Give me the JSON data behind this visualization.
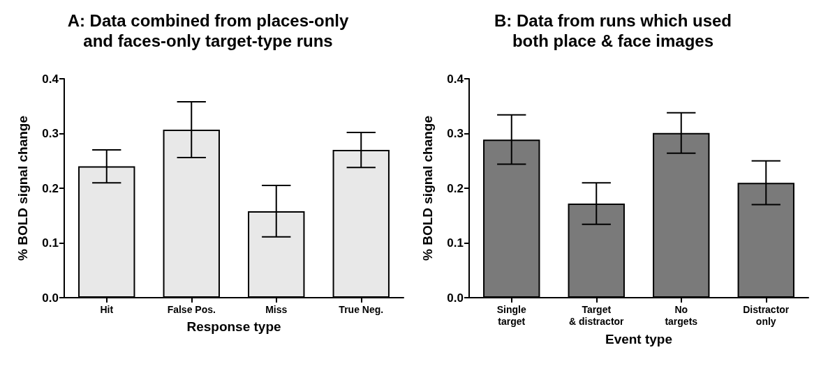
{
  "chart_data": [
    {
      "type": "bar",
      "title": "A: Data combined from places-only\nand faces-only target-type runs",
      "xlabel": "Response type",
      "ylabel": "% BOLD signal change",
      "categories": [
        "Hit",
        "False Pos.",
        "Miss",
        "True Neg."
      ],
      "values": [
        0.24,
        0.307,
        0.158,
        0.27
      ],
      "errors": [
        0.03,
        0.051,
        0.047,
        0.032
      ],
      "colors": [
        "#e8e8e8",
        "#e8e8e8",
        "#e8e8e8",
        "#e8e8e8"
      ],
      "ylim": [
        0,
        0.4
      ],
      "yticks": [
        {
          "value": 0,
          "label": "0.0"
        },
        {
          "value": 0.1,
          "label": "0.1"
        },
        {
          "value": 0.2,
          "label": "0.2"
        },
        {
          "value": 0.3,
          "label": "0.3"
        },
        {
          "value": 0.4,
          "label": "0.4"
        }
      ],
      "grid": false
    },
    {
      "type": "bar",
      "title": "B: Data from runs which used\nboth place & face images",
      "xlabel": "Event type",
      "ylabel": "% BOLD signal change",
      "categories": [
        "Single\ntarget",
        "Target\n& distractor",
        "No\ntargets",
        "Distractor\nonly"
      ],
      "values": [
        0.289,
        0.172,
        0.301,
        0.21
      ],
      "errors": [
        0.045,
        0.038,
        0.037,
        0.04
      ],
      "colors": [
        "#7a7a7a",
        "#7a7a7a",
        "#7a7a7a",
        "#7a7a7a"
      ],
      "ylim": [
        0,
        0.4
      ],
      "yticks": [
        {
          "value": 0,
          "label": "0.0"
        },
        {
          "value": 0.1,
          "label": "0.1"
        },
        {
          "value": 0.2,
          "label": "0.2"
        },
        {
          "value": 0.3,
          "label": "0.3"
        },
        {
          "value": 0.4,
          "label": "0.4"
        }
      ],
      "grid": false
    }
  ]
}
